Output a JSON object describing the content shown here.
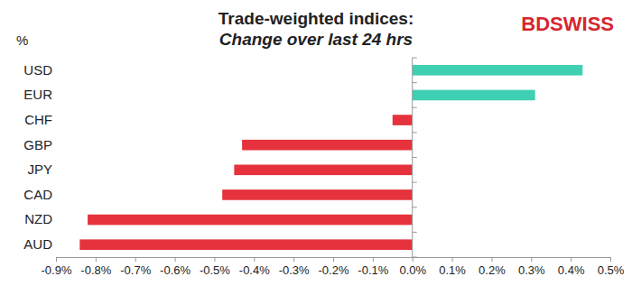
{
  "chart_data": {
    "type": "bar",
    "orientation": "horizontal",
    "title": "Trade-weighted indices:",
    "subtitle": "Change over last 24 hrs",
    "ylabel": "%",
    "annotations": [
      "BDSWISS"
    ],
    "categories": [
      "USD",
      "EUR",
      "CHF",
      "GBP",
      "JPY",
      "CAD",
      "NZD",
      "AUD"
    ],
    "values": [
      0.43,
      0.31,
      -0.05,
      -0.43,
      -0.45,
      -0.48,
      -0.82,
      -0.84
    ],
    "colors": [
      "#3fd0b4",
      "#3fd0b4",
      "#e5323c",
      "#e5323c",
      "#e5323c",
      "#e5323c",
      "#e5323c",
      "#e5323c"
    ],
    "xlim": [
      -0.9,
      0.5
    ],
    "xticks": [
      {
        "value": -0.9,
        "label": "-0.9%"
      },
      {
        "value": -0.8,
        "label": "-0.8%"
      },
      {
        "value": -0.7,
        "label": "-0.7%"
      },
      {
        "value": -0.6,
        "label": "-0.6%"
      },
      {
        "value": -0.5,
        "label": "-0.5%"
      },
      {
        "value": -0.4,
        "label": "-0.4%"
      },
      {
        "value": -0.3,
        "label": "-0.3%"
      },
      {
        "value": -0.2,
        "label": "-0.2%"
      },
      {
        "value": -0.1,
        "label": "-0.1%"
      },
      {
        "value": 0.0,
        "label": "0.0%"
      },
      {
        "value": 0.1,
        "label": "0.1%"
      },
      {
        "value": 0.2,
        "label": "0.2%"
      },
      {
        "value": 0.3,
        "label": "0.3%"
      },
      {
        "value": 0.4,
        "label": "0.4%"
      },
      {
        "value": 0.5,
        "label": "0.5%"
      }
    ],
    "grid": false,
    "data_labels": false
  }
}
